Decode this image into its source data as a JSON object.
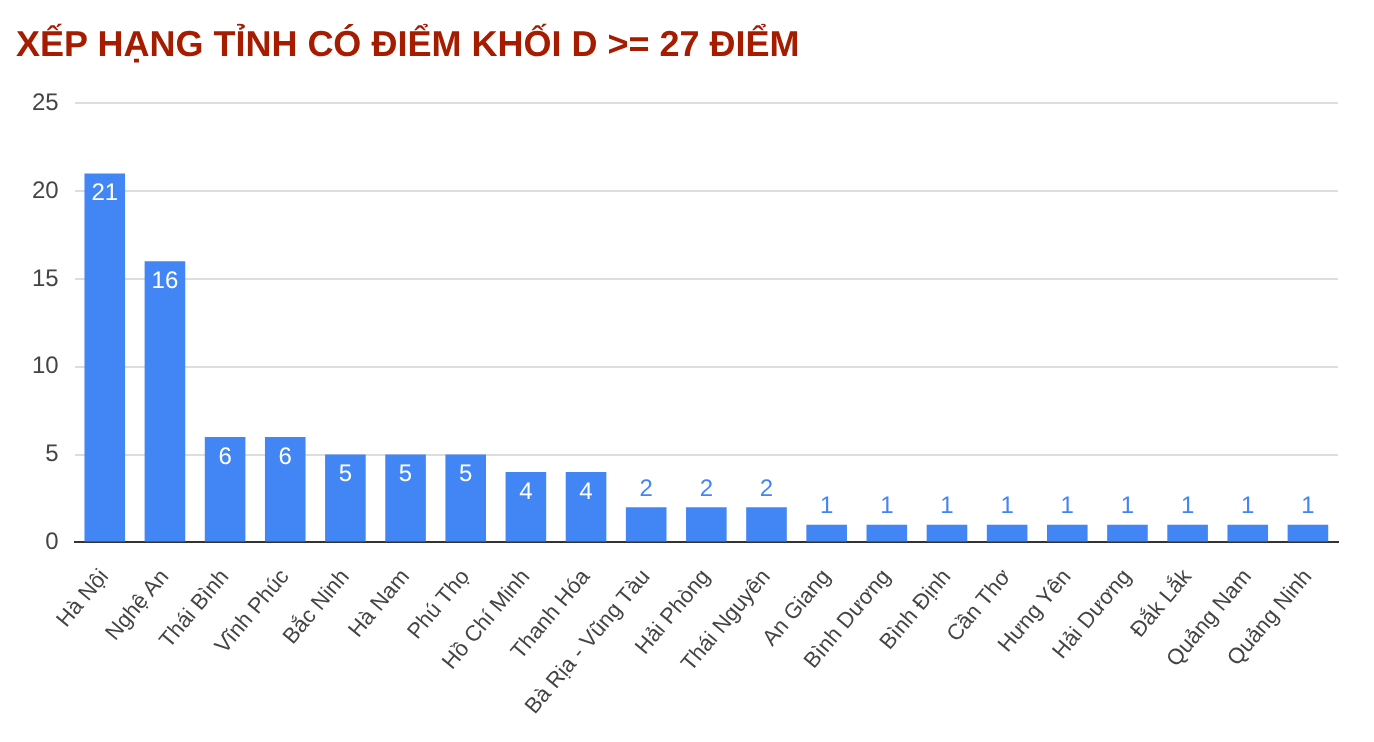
{
  "chart_data": {
    "type": "bar",
    "title": "XẾP HẠNG TỈNH CÓ ĐIỂM KHỐI D >= 27 ĐIỂM",
    "categories": [
      "Hà Nội",
      "Nghệ An",
      "Thái Bình",
      "Vĩnh Phúc",
      "Bắc Ninh",
      "Hà Nam",
      "Phú Thọ",
      "Hồ Chí Minh",
      "Thanh Hóa",
      "Bà Rịa - Vũng Tàu",
      "Hải Phòng",
      "Thái Nguyên",
      "An Giang",
      "Bình Dương",
      "Bình Định",
      "Cần Thơ",
      "Hưng Yên",
      "Hải Dương",
      "Đắk Lắk",
      "Quảng Nam",
      "Quảng Ninh"
    ],
    "values": [
      21,
      16,
      6,
      6,
      5,
      5,
      5,
      4,
      4,
      2,
      2,
      2,
      1,
      1,
      1,
      1,
      1,
      1,
      1,
      1,
      1
    ],
    "color": "#4285f4",
    "ylim": [
      0,
      25
    ],
    "yticks": [
      0,
      5,
      10,
      15,
      20,
      25
    ],
    "grid": "y",
    "legend": false,
    "data_labels": true
  }
}
